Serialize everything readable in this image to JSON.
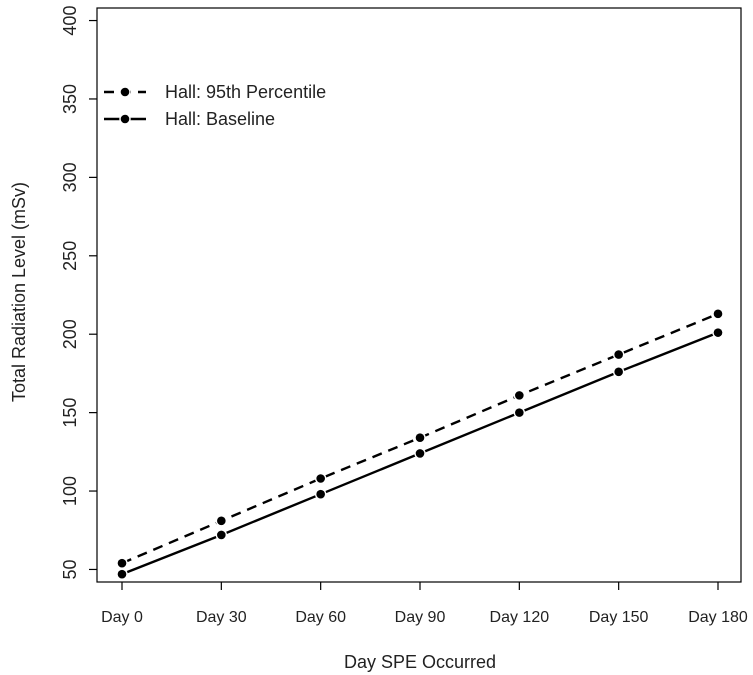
{
  "chart_data": {
    "type": "line",
    "title": "",
    "xlabel": "Day SPE Occurred",
    "ylabel": "Total Radiation Level (mSv)",
    "categories": [
      "Day 0",
      "Day 30",
      "Day 60",
      "Day 90",
      "Day 120",
      "Day 150",
      "Day 180"
    ],
    "y_ticks": [
      50,
      100,
      150,
      200,
      250,
      300,
      350,
      400
    ],
    "y_tick_labels": [
      "50",
      "100",
      "150",
      "200",
      "250",
      "300",
      "350",
      "400"
    ],
    "ylim": [
      42,
      408
    ],
    "grid": false,
    "legend_position": "top-left",
    "series": [
      {
        "name": "Hall: 95th Percentile",
        "line_style": "dashed",
        "marker": "filled-circle",
        "color": "#000000",
        "values": [
          54,
          81,
          108,
          134,
          161,
          187,
          213
        ]
      },
      {
        "name": "Hall: Baseline",
        "line_style": "solid",
        "marker": "filled-circle",
        "color": "#000000",
        "values": [
          47,
          72,
          98,
          124,
          150,
          176,
          201
        ]
      }
    ]
  }
}
